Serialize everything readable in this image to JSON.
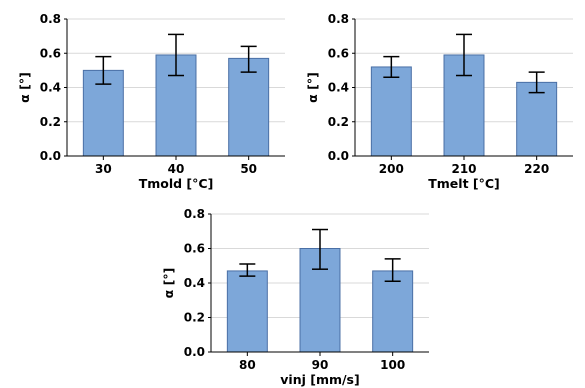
{
  "colors": {
    "bar_fill": "#7da7d9",
    "bar_stroke": "#4a6fa5",
    "grid": "#d9d9d9",
    "error_bar": "#000000"
  },
  "chart_data": [
    {
      "type": "bar",
      "categories": [
        "30",
        "40",
        "50"
      ],
      "values": [
        0.5,
        0.59,
        0.57
      ],
      "error_low": [
        0.42,
        0.47,
        0.49
      ],
      "error_high": [
        0.58,
        0.71,
        0.64
      ],
      "xlabel": "Tmold [°C]",
      "ylabel": "α [°]",
      "ylim": [
        0,
        0.8
      ],
      "yticks": [
        "0.0",
        "0.2",
        "0.4",
        "0.6",
        "0.8"
      ],
      "grid": true
    },
    {
      "type": "bar",
      "categories": [
        "200",
        "210",
        "220"
      ],
      "values": [
        0.52,
        0.59,
        0.43
      ],
      "error_low": [
        0.46,
        0.47,
        0.37
      ],
      "error_high": [
        0.58,
        0.71,
        0.49
      ],
      "xlabel": "Tmelt [°C]",
      "ylabel": "α [°]",
      "ylim": [
        0,
        0.8
      ],
      "yticks": [
        "0.0",
        "0.2",
        "0.4",
        "0.6",
        "0.8"
      ],
      "grid": true
    },
    {
      "type": "bar",
      "categories": [
        "80",
        "90",
        "100"
      ],
      "values": [
        0.47,
        0.6,
        0.47
      ],
      "error_low": [
        0.44,
        0.48,
        0.41
      ],
      "error_high": [
        0.51,
        0.71,
        0.54
      ],
      "xlabel": "vinj [mm/s]",
      "ylabel": "α [°]",
      "ylim": [
        0,
        0.8
      ],
      "yticks": [
        "0.0",
        "0.2",
        "0.4",
        "0.6",
        "0.8"
      ],
      "grid": true
    }
  ]
}
